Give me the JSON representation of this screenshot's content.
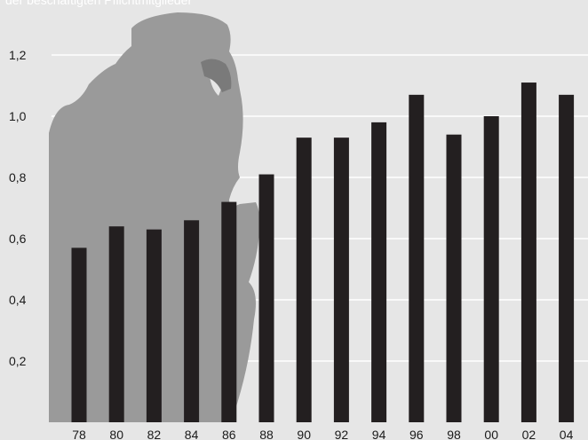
{
  "chart_data": {
    "type": "bar",
    "subtitle": "der beschäftigten Pflichtmitglieder",
    "categories": [
      "78",
      "80",
      "82",
      "84",
      "86",
      "88",
      "90",
      "92",
      "94",
      "96",
      "98",
      "00",
      "02",
      "04"
    ],
    "values": [
      0.57,
      0.64,
      0.63,
      0.66,
      0.72,
      0.81,
      0.93,
      0.93,
      0.98,
      1.07,
      0.94,
      1.0,
      1.11,
      1.07
    ],
    "yticks": [
      "0,2",
      "0,4",
      "0,6",
      "0,8",
      "1,0",
      "1,2"
    ],
    "ytick_values": [
      0.2,
      0.4,
      0.6,
      0.8,
      1.0,
      1.2
    ],
    "ylim": [
      0,
      1.3
    ],
    "grid": true,
    "colors": {
      "background": "#e6e6e6",
      "bar": "#231f20",
      "grid": "#ffffff",
      "silhouette": "#9a9a9a"
    }
  },
  "illustration": {
    "icon": "thinking-person-silhouette-icon"
  }
}
